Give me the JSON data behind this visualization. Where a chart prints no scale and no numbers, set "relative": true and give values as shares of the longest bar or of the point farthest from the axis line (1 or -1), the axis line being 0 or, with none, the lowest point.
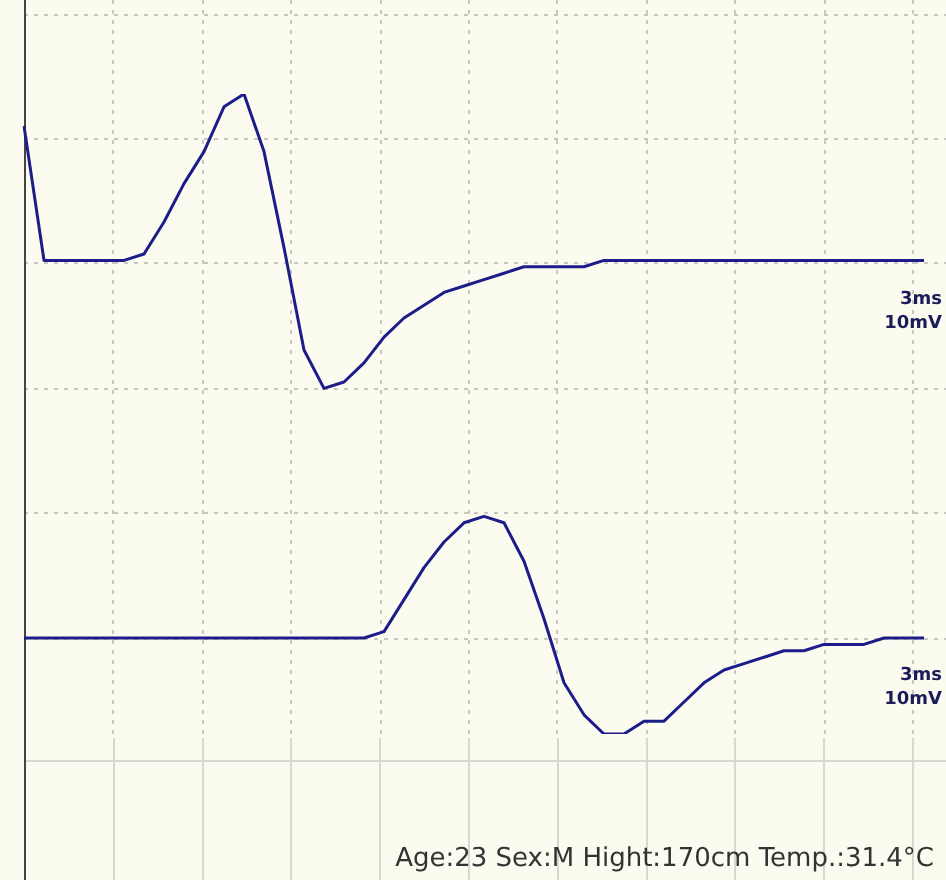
{
  "chart_data": [
    {
      "type": "line",
      "relative": true,
      "grid": true,
      "legend": false,
      "marker": "none",
      "line_style": "solid",
      "categories": [
        null,
        null,
        null,
        null,
        null,
        null,
        null,
        null,
        null,
        null,
        null,
        null,
        null,
        null,
        null,
        null,
        null,
        null,
        null,
        null,
        null,
        null,
        null,
        null,
        null,
        null,
        null,
        null,
        null,
        null,
        null,
        null,
        null,
        null,
        null,
        null,
        null,
        null,
        null,
        null,
        null,
        null,
        null,
        null,
        null,
        null
      ],
      "series": [
        {
          "color": "#1c1c8a",
          "values": [
            0.95,
            0.74,
            0.74,
            0.74,
            0.74,
            0.74,
            0.75,
            0.8,
            0.86,
            0.91,
            0.98,
            1,
            0.91,
            0.76,
            0.6,
            0.54,
            0.55,
            0.58,
            0.62,
            0.65,
            0.67,
            0.69,
            0.7,
            0.71,
            0.72,
            0.73,
            0.73,
            0.73,
            0.73,
            0.74,
            0.74,
            0.74,
            0.74,
            0.74,
            0.74,
            0.74,
            0.74,
            0.74,
            0.74,
            0.74,
            0.74,
            0.74,
            0.74,
            0.74,
            0.74,
            0.74
          ]
        },
        {
          "color": "#1c1c8a",
          "values": [
            0.15,
            0.15,
            0.15,
            0.15,
            0.15,
            0.15,
            0.15,
            0.15,
            0.15,
            0.15,
            0.15,
            0.15,
            0.15,
            0.15,
            0.15,
            0.15,
            0.15,
            0.15,
            0.16,
            0.21,
            0.26,
            0.3,
            0.33,
            0.34,
            0.33,
            0.27,
            0.18,
            0.08,
            0.03,
            0,
            0,
            0.02,
            0.02,
            0.05,
            0.08,
            0.1,
            0.11,
            0.12,
            0.13,
            0.13,
            0.14,
            0.14,
            0.14,
            0.15,
            0.15,
            0.15
          ]
        }
      ],
      "annotations": [
        "3ms",
        "10mV",
        "3ms",
        "10mV"
      ]
    },
    {
      "type": "other",
      "annotations": [
        "Age:23 Sex:M Hight:170cm Temp.:31.4°C"
      ]
    }
  ]
}
